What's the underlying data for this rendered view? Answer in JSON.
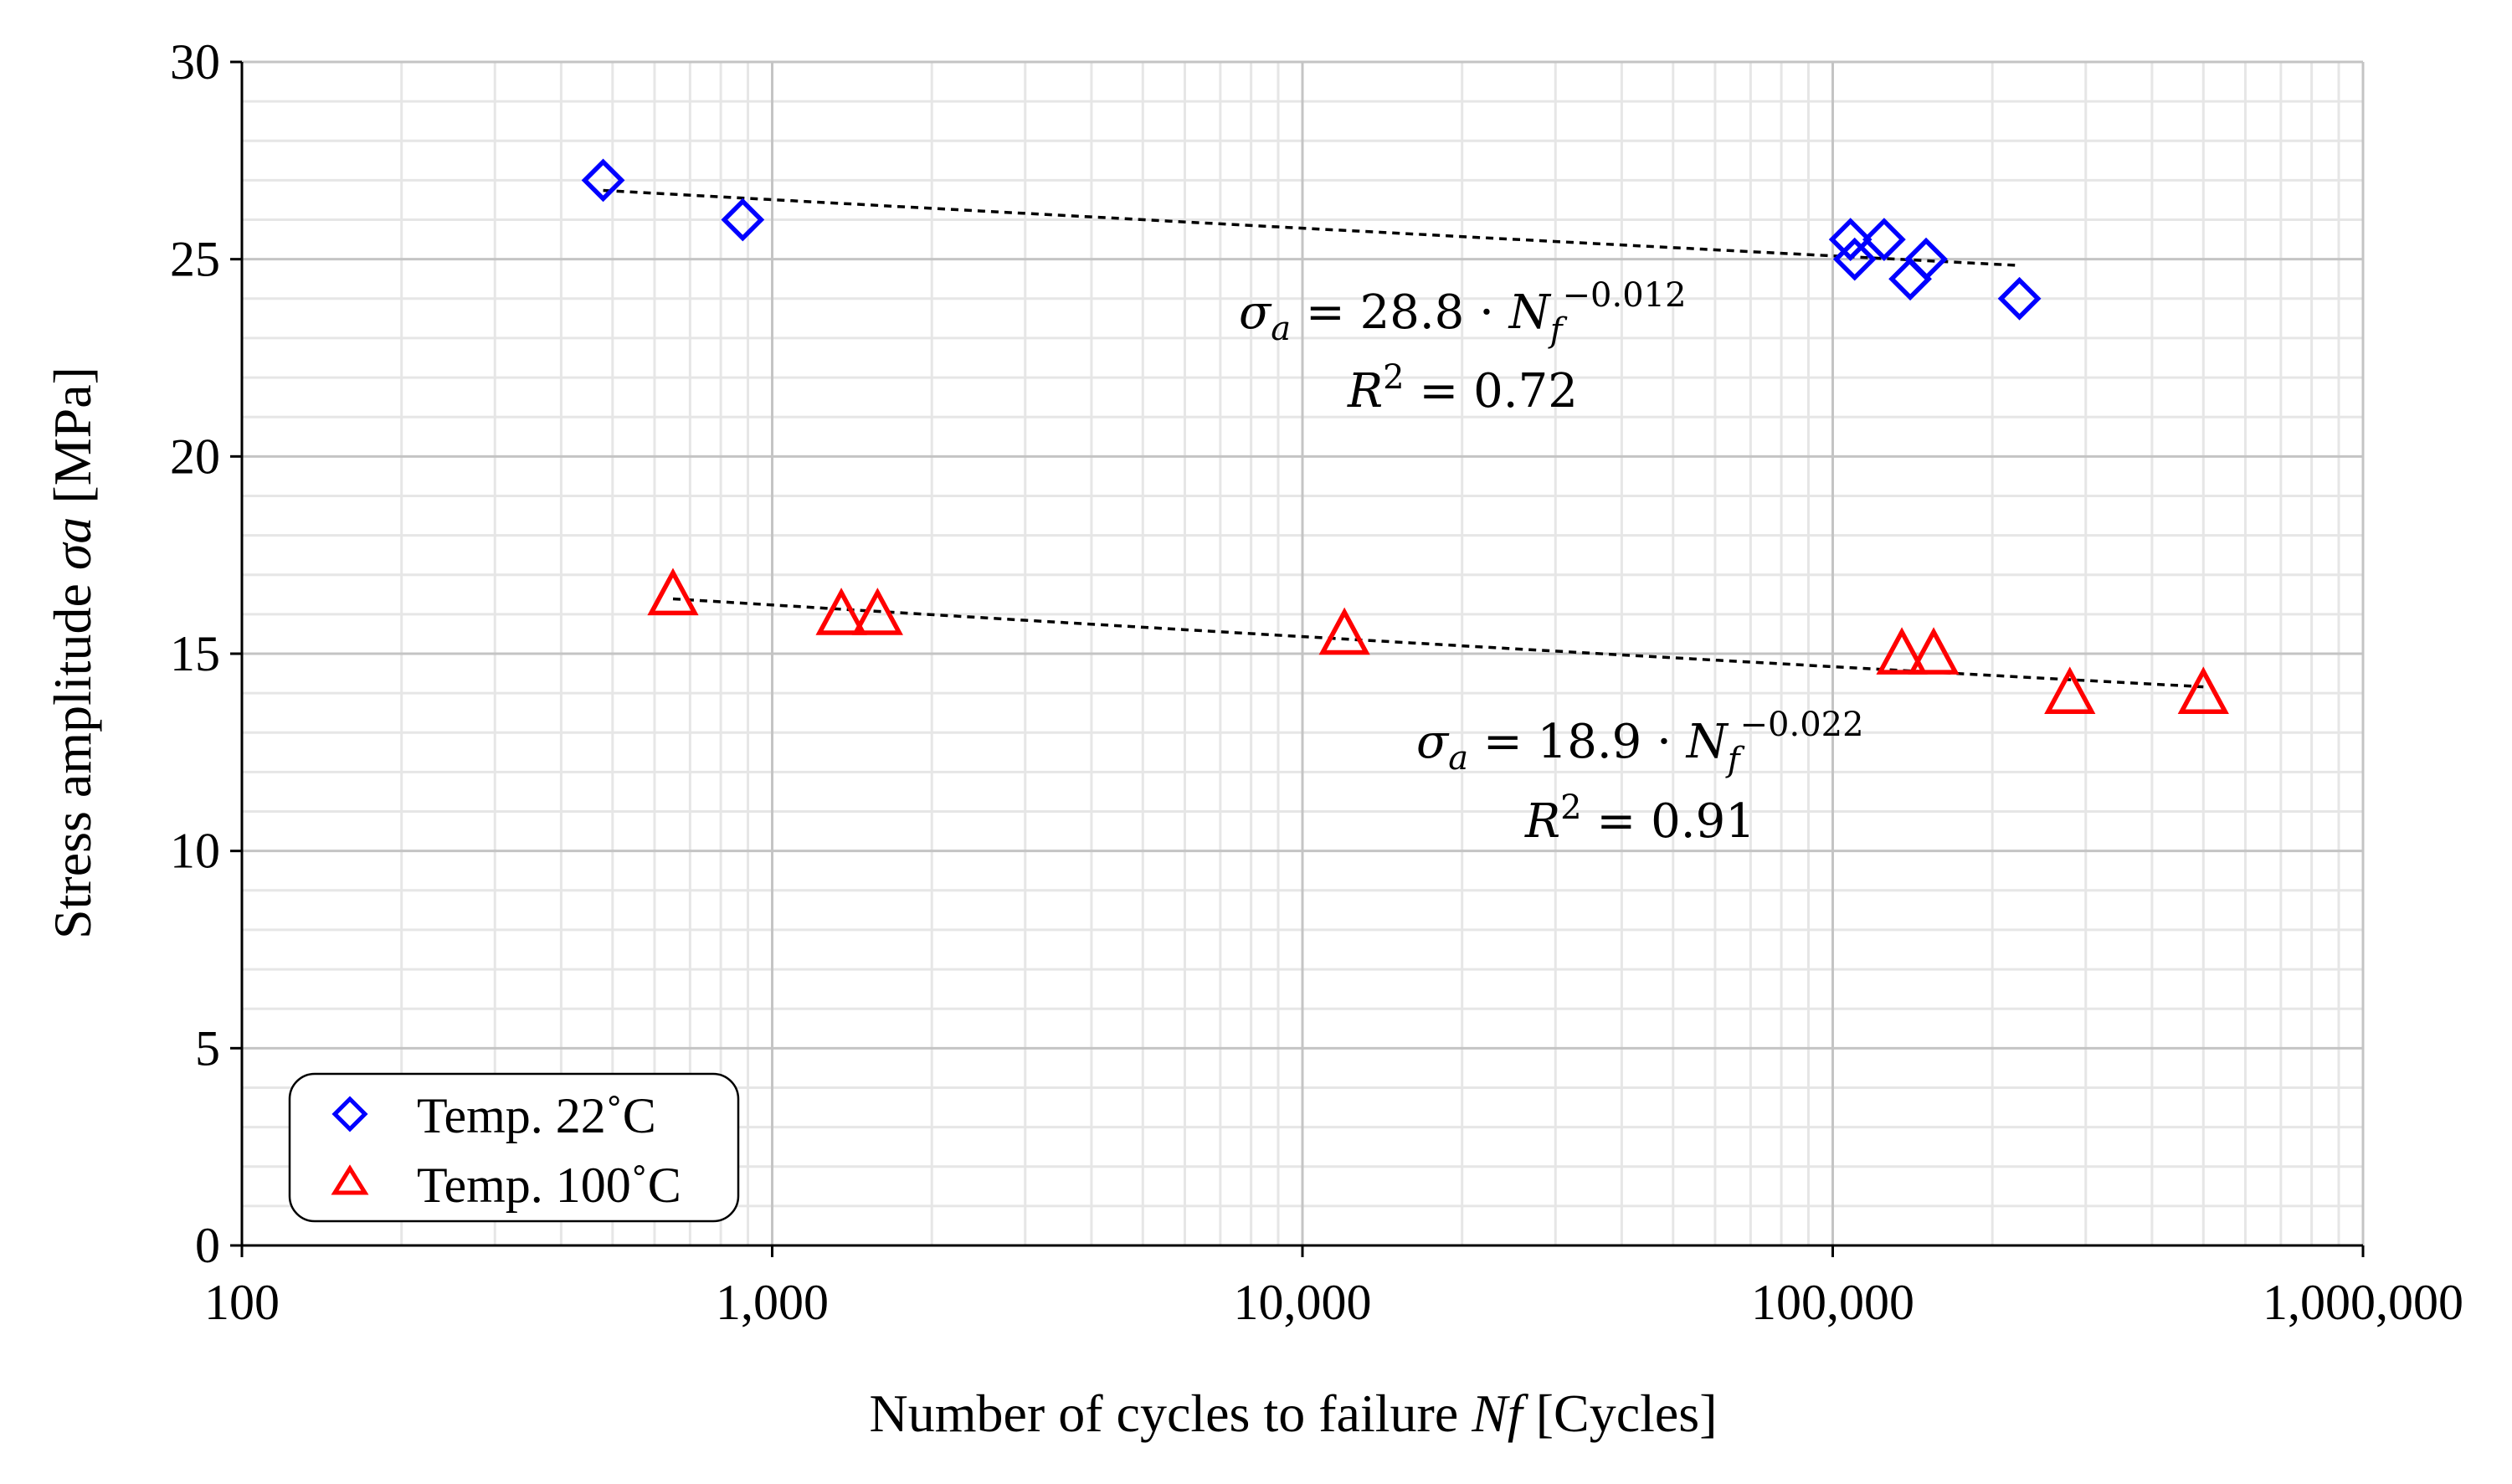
{
  "chart_data": {
    "type": "scatter",
    "xscale": "log",
    "xlim": [
      100,
      1000000
    ],
    "ylim": [
      0,
      30
    ],
    "xticks": [
      {
        "value": 100,
        "label": "100"
      },
      {
        "value": 1000,
        "label": "1,000"
      },
      {
        "value": 10000,
        "label": "10,000"
      },
      {
        "value": 100000,
        "label": "100,000"
      },
      {
        "value": 1000000,
        "label": "1,000,000"
      }
    ],
    "yticks": [
      {
        "value": 0,
        "label": "0"
      },
      {
        "value": 5,
        "label": "5"
      },
      {
        "value": 10,
        "label": "10"
      },
      {
        "value": 15,
        "label": "15"
      },
      {
        "value": 20,
        "label": "20"
      },
      {
        "value": 25,
        "label": "25"
      },
      {
        "value": 30,
        "label": "30"
      }
    ],
    "xlabel": {
      "prefix": "Number of cycles to failure ",
      "var": "Nf",
      "suffix": "  [Cycles]"
    },
    "ylabel": {
      "prefix": "Stress amplitude ",
      "var": "σa",
      "suffix": " [MPa]"
    },
    "grid": true,
    "legend_position": "bottom-left",
    "series": [
      {
        "name": "Temp. 22°C",
        "label_text": "Temp. 22˚C",
        "marker": "diamond",
        "color": "#0000ff",
        "points": [
          {
            "x": 480,
            "y": 27.0
          },
          {
            "x": 880,
            "y": 26.0
          },
          {
            "x": 108000,
            "y": 25.5
          },
          {
            "x": 110000,
            "y": 25.0
          },
          {
            "x": 125000,
            "y": 25.5
          },
          {
            "x": 140000,
            "y": 24.5
          },
          {
            "x": 150000,
            "y": 25.0
          },
          {
            "x": 225000,
            "y": 24.0
          }
        ],
        "trend": {
          "a": 28.8,
          "b": -0.012,
          "r2": 0.72,
          "x_from": 480,
          "x_to": 225000
        },
        "equation": {
          "lhs": "σ",
          "lhs_sub": "a",
          "eq": " = 28.8 · ",
          "var": "N",
          "var_sub": "f",
          "exp": "−0.012",
          "r2_label": "R",
          "r2_exp": "2",
          "r2_val": " = 0.72"
        }
      },
      {
        "name": "Temp. 100°C",
        "label_text": "Temp. 100˚C",
        "marker": "triangle",
        "color": "#ff0000",
        "points": [
          {
            "x": 650,
            "y": 16.5
          },
          {
            "x": 1350,
            "y": 16.0
          },
          {
            "x": 1580,
            "y": 16.0
          },
          {
            "x": 12000,
            "y": 15.5
          },
          {
            "x": 135000,
            "y": 15.0
          },
          {
            "x": 155000,
            "y": 15.0
          },
          {
            "x": 280000,
            "y": 14.0
          },
          {
            "x": 500000,
            "y": 14.0
          }
        ],
        "trend": {
          "a": 18.9,
          "b": -0.022,
          "r2": 0.91,
          "x_from": 650,
          "x_to": 500000
        },
        "equation": {
          "lhs": "σ",
          "lhs_sub": "a",
          "eq": " = 18.9 · ",
          "var": "N",
          "var_sub": "f",
          "exp": "−0.022",
          "r2_label": "R",
          "r2_exp": "2",
          "r2_val": " = 0.91"
        }
      }
    ]
  }
}
